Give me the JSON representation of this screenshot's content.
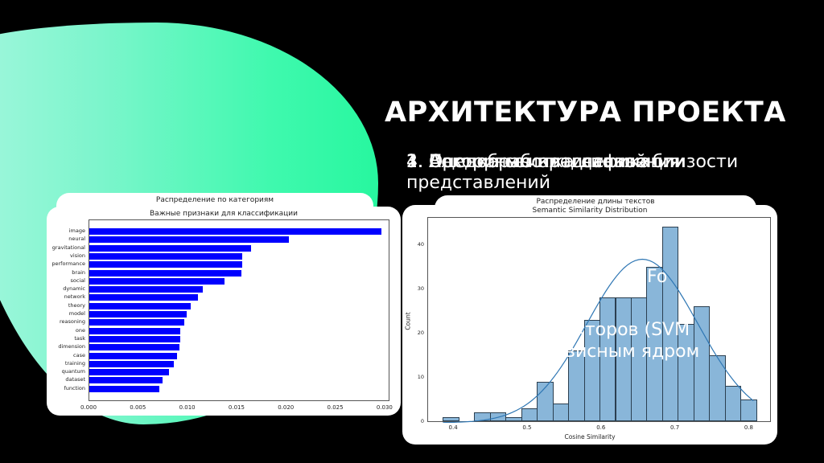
{
  "slide": {
    "title": "АРХИТЕКТУРА ПРОЕКТА",
    "subtitle_layers": [
      "1. Предобработка данных",
      "2. Векторные представления",
      "3. Оценка семантической близости",
      "4. Алгоритмы классификации"
    ],
    "subtitle_line2": "представлений",
    "overlay_fragments": [
      "nFo",
      "екторов (SVM",
      "висным ядром"
    ],
    "accent_color": "#3ff9ae",
    "background_color": "#000000"
  },
  "chart_data": [
    {
      "type": "bar",
      "orientation": "horizontal",
      "back_title": "Распределение по категориям",
      "title": "Важные признаки для классификации",
      "categories": [
        "image",
        "neural",
        "gravitational",
        "vision",
        "performance",
        "brain",
        "social",
        "dynamic",
        "network",
        "theory",
        "model",
        "reasoning",
        "one",
        "task",
        "dimension",
        "case",
        "training",
        "quantum",
        "dataset",
        "function"
      ],
      "values": [
        0.0296,
        0.0202,
        0.0164,
        0.0155,
        0.0155,
        0.0154,
        0.0137,
        0.0115,
        0.011,
        0.0103,
        0.0099,
        0.0096,
        0.0092,
        0.0092,
        0.0091,
        0.0089,
        0.0086,
        0.0081,
        0.0074,
        0.0071
      ],
      "xticks": [
        "0.000",
        "0.005",
        "0.010",
        "0.015",
        "0.020",
        "0.025",
        "0.030"
      ],
      "xlim": [
        0,
        0.0305
      ],
      "color": "#0000ff",
      "grid": false
    },
    {
      "type": "bar",
      "subtype": "histogram_with_kde",
      "back_title": "Распределение длины текстов",
      "title": "Semantic Similarity Distribution",
      "xlabel": "Cosine Similarity",
      "ylabel": "Count",
      "bin_start": 0.385,
      "bin_width": 0.0212,
      "counts": [
        1,
        0,
        2,
        2,
        1,
        3,
        9,
        4,
        16,
        23,
        28,
        28,
        28,
        35,
        44,
        22,
        26,
        15,
        8,
        5
      ],
      "xticks": [
        "0.4",
        "0.5",
        "0.6",
        "0.7",
        "0.8"
      ],
      "yticks": [
        "0",
        "10",
        "20",
        "30",
        "40"
      ],
      "xlim": [
        0.365,
        0.83
      ],
      "ylim": [
        0,
        46
      ],
      "color": "#89b6d9",
      "kde_color": "#2f77b4",
      "grid": false
    }
  ]
}
